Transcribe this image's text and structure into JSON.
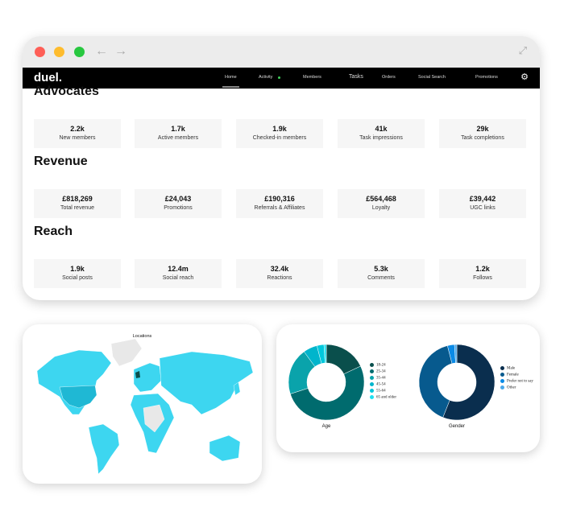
{
  "nav": {
    "logo": "duel.",
    "items": [
      "Home",
      "Activity",
      "Members",
      "Tasks",
      "Orders",
      "Social Search",
      "Promotions"
    ],
    "active": "Home",
    "activity_dot_color": "#3ecf5a"
  },
  "sections": [
    {
      "title": "Advocates",
      "cards": [
        {
          "value": "2.2k",
          "label": "New members"
        },
        {
          "value": "1.7k",
          "label": "Active members"
        },
        {
          "value": "1.9k",
          "label": "Checked-in members"
        },
        {
          "value": "41k",
          "label": "Task impressions"
        },
        {
          "value": "29k",
          "label": "Task completions"
        }
      ]
    },
    {
      "title": "Revenue",
      "cards": [
        {
          "value": "£818,269",
          "label": "Total revenue"
        },
        {
          "value": "£24,043",
          "label": "Promotions"
        },
        {
          "value": "£190,316",
          "label": "Referrals & Affiliates"
        },
        {
          "value": "£564,468",
          "label": "Loyalty"
        },
        {
          "value": "£39,442",
          "label": "UGC links"
        }
      ]
    },
    {
      "title": "Reach",
      "cards": [
        {
          "value": "1.9k",
          "label": "Social posts"
        },
        {
          "value": "12.4m",
          "label": "Social reach"
        },
        {
          "value": "32.4k",
          "label": "Reactions"
        },
        {
          "value": "5.3k",
          "label": "Comments"
        },
        {
          "value": "1.2k",
          "label": "Follows"
        }
      ]
    }
  ],
  "map": {
    "title": "Locations",
    "land_color": "#3dd6f0",
    "highlight_color": "#1fb8d4",
    "nodata_color": "#e8e8e8"
  },
  "chart_data": [
    {
      "type": "pie",
      "title": "Age",
      "categories": [
        "18-24",
        "25-34",
        "35-44",
        "45-54",
        "55-64",
        "65 and older"
      ],
      "values": [
        18,
        52,
        20,
        6,
        3,
        1
      ],
      "colors": [
        "#0a4f4c",
        "#006b6e",
        "#0aa3ab",
        "#00b5cc",
        "#00c8dc",
        "#1fe0f0"
      ],
      "donut": true,
      "legend": "right"
    },
    {
      "type": "pie",
      "title": "Gender",
      "categories": [
        "Male",
        "Female",
        "Prefer not to say",
        "Other"
      ],
      "values": [
        56,
        40,
        3,
        1
      ],
      "colors": [
        "#0a2e4e",
        "#075a8e",
        "#0a8ae6",
        "#4aa8ea"
      ],
      "donut": true,
      "legend": "right"
    }
  ]
}
